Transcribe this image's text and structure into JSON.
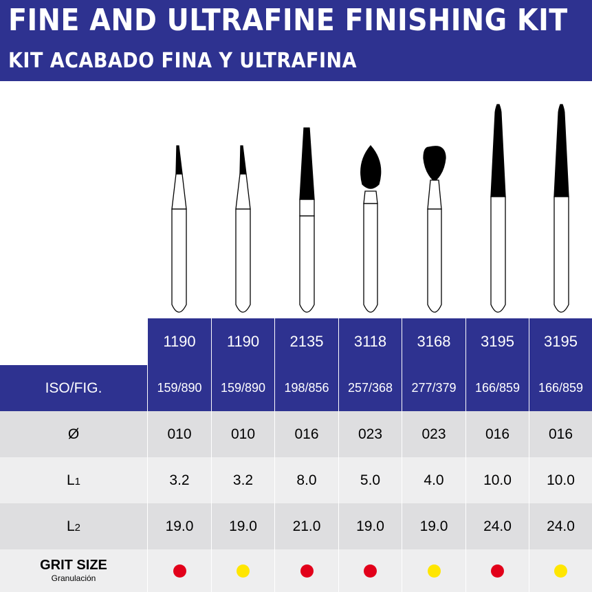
{
  "header": {
    "title": "FINE AND ULTRAFINE FINISHING KIT",
    "subtitle": "KIT ACABADO FINA Y ULTRAFINA"
  },
  "columns": [
    {
      "code": "1190",
      "iso": "159/890",
      "diameter": "010",
      "l1": "3.2",
      "l2": "19.0",
      "grit": "red"
    },
    {
      "code": "1190",
      "iso": "159/890",
      "diameter": "010",
      "l1": "3.2",
      "l2": "19.0",
      "grit": "yellow"
    },
    {
      "code": "2135",
      "iso": "198/856",
      "diameter": "016",
      "l1": "8.0",
      "l2": "21.0",
      "grit": "red"
    },
    {
      "code": "3118",
      "iso": "257/368",
      "diameter": "023",
      "l1": "5.0",
      "l2": "19.0",
      "grit": "red"
    },
    {
      "code": "3168",
      "iso": "277/379",
      "diameter": "023",
      "l1": "4.0",
      "l2": "19.0",
      "grit": "yellow"
    },
    {
      "code": "3195",
      "iso": "166/859",
      "diameter": "016",
      "l1": "10.0",
      "l2": "24.0",
      "grit": "red"
    },
    {
      "code": "3195",
      "iso": "166/859",
      "diameter": "016",
      "l1": "10.0",
      "l2": "24.0",
      "grit": "yellow"
    }
  ],
  "labels": {
    "iso": "ISO/FIG.",
    "diameter": "Ø",
    "l1": "L",
    "l1_sub": "1",
    "l2": "L",
    "l2_sub": "2",
    "grit": "GRIT SIZE",
    "grit_sub": "Granulación"
  },
  "colors": {
    "brand": "#2e3290",
    "red": "#e2001a",
    "yellow": "#ffe600",
    "row_dark": "#dedee0",
    "row_light": "#eeeeef"
  },
  "icons": [
    "bur-1190-icon",
    "bur-1190-icon",
    "bur-2135-icon",
    "bur-3118-icon",
    "bur-3168-icon",
    "bur-3195-icon",
    "bur-3195-icon"
  ]
}
